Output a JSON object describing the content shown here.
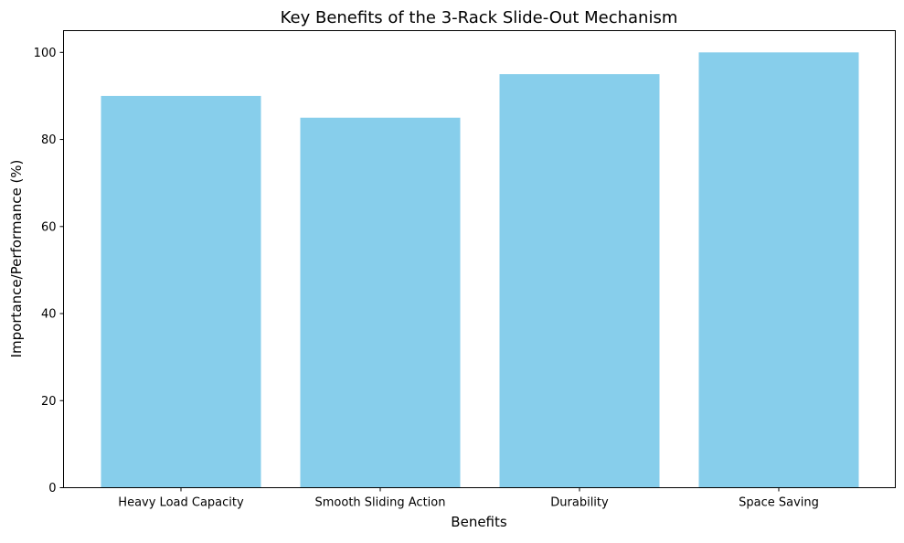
{
  "chart_data": {
    "type": "bar",
    "title": "Key Benefits of the 3-Rack Slide-Out Mechanism",
    "xlabel": "Benefits",
    "ylabel": "Importance/Performance (%)",
    "categories": [
      "Heavy Load Capacity",
      "Smooth Sliding Action",
      "Durability",
      "Space Saving"
    ],
    "values": [
      90,
      85,
      95,
      100
    ],
    "ylim": [
      0,
      105
    ],
    "yticks": [
      0,
      20,
      40,
      60,
      80,
      100
    ],
    "bar_color": "#87CEEB",
    "grid": false,
    "legend": "none"
  }
}
